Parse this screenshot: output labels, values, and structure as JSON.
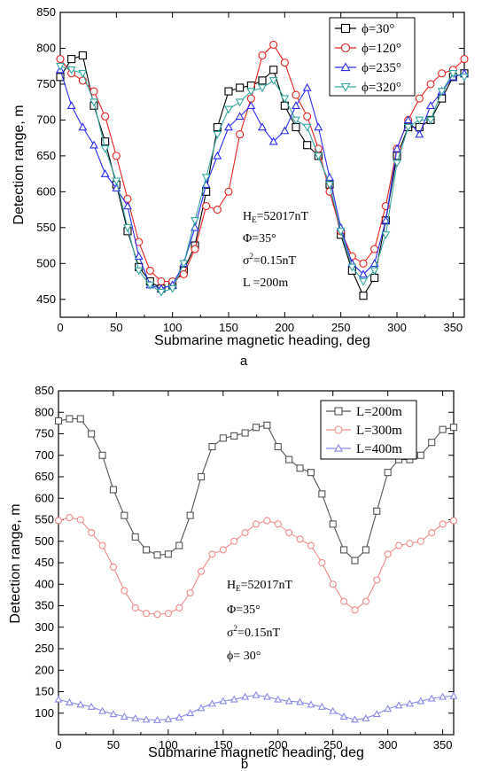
{
  "chart_data": [
    {
      "type": "line",
      "panel_label": "a",
      "xlabel": "Submarine magnetic heading, deg",
      "ylabel": "Detection range, m",
      "xlim": [
        0,
        360
      ],
      "ylim": [
        425,
        850
      ],
      "xticks": [
        0,
        50,
        100,
        150,
        200,
        250,
        300,
        350
      ],
      "yticks": [
        450,
        500,
        550,
        600,
        650,
        700,
        750,
        800,
        850
      ],
      "legend_position": "top-right",
      "annotation": [
        "H",
        "E",
        "=52017nT",
        "Φ=35°",
        "σ",
        "2",
        "=0.15nT",
        "L =200m"
      ],
      "series": [
        {
          "name": "ϕ=30°",
          "color": "#000000",
          "marker": "square",
          "x": [
            0,
            10,
            20,
            30,
            40,
            50,
            60,
            70,
            80,
            90,
            100,
            110,
            120,
            130,
            140,
            150,
            160,
            170,
            180,
            190,
            200,
            210,
            220,
            230,
            240,
            250,
            260,
            270,
            280,
            290,
            300,
            310,
            320,
            330,
            340,
            350,
            360
          ],
          "y": [
            760,
            785,
            790,
            720,
            670,
            610,
            545,
            495,
            475,
            465,
            470,
            490,
            525,
            600,
            690,
            740,
            745,
            748,
            755,
            770,
            720,
            690,
            665,
            650,
            610,
            540,
            490,
            455,
            480,
            560,
            650,
            690,
            690,
            700,
            730,
            760,
            765
          ]
        },
        {
          "name": "ϕ=120°",
          "color": "#e8231f",
          "marker": "circle",
          "x": [
            0,
            10,
            20,
            30,
            40,
            50,
            60,
            70,
            80,
            90,
            100,
            110,
            120,
            130,
            140,
            150,
            160,
            170,
            180,
            190,
            200,
            210,
            220,
            230,
            240,
            250,
            260,
            270,
            280,
            290,
            300,
            310,
            320,
            330,
            340,
            350,
            360
          ],
          "y": [
            785,
            765,
            755,
            740,
            705,
            650,
            590,
            530,
            490,
            475,
            475,
            485,
            520,
            580,
            575,
            600,
            680,
            730,
            790,
            805,
            780,
            735,
            705,
            660,
            600,
            545,
            510,
            500,
            520,
            580,
            660,
            700,
            730,
            750,
            765,
            770,
            785
          ]
        },
        {
          "name": "ϕ=235°",
          "color": "#2a2df2",
          "marker": "triangle-up",
          "x": [
            0,
            10,
            20,
            30,
            40,
            50,
            60,
            70,
            80,
            90,
            100,
            110,
            120,
            130,
            140,
            150,
            160,
            170,
            180,
            190,
            200,
            210,
            220,
            230,
            240,
            250,
            260,
            270,
            280,
            290,
            300,
            310,
            320,
            330,
            340,
            350,
            360
          ],
          "y": [
            770,
            720,
            690,
            665,
            625,
            605,
            580,
            510,
            470,
            465,
            470,
            500,
            550,
            610,
            650,
            690,
            705,
            720,
            690,
            670,
            685,
            720,
            745,
            690,
            620,
            550,
            500,
            485,
            500,
            560,
            660,
            700,
            680,
            720,
            740,
            760,
            765
          ]
        },
        {
          "name": "ϕ=320°",
          "color": "#35a6a0",
          "marker": "triangle-down",
          "x": [
            0,
            10,
            20,
            30,
            40,
            50,
            60,
            70,
            80,
            90,
            100,
            110,
            120,
            130,
            140,
            150,
            160,
            170,
            180,
            190,
            200,
            210,
            220,
            230,
            240,
            250,
            260,
            270,
            280,
            290,
            300,
            310,
            320,
            330,
            340,
            350,
            360
          ],
          "y": [
            775,
            770,
            765,
            725,
            660,
            615,
            550,
            490,
            470,
            460,
            465,
            500,
            560,
            620,
            680,
            715,
            725,
            740,
            745,
            755,
            730,
            700,
            690,
            650,
            610,
            545,
            495,
            475,
            490,
            540,
            640,
            690,
            700,
            700,
            740,
            765,
            760
          ]
        }
      ]
    },
    {
      "type": "line",
      "panel_label": "b",
      "xlabel": "Submarine magnetic heading, deg",
      "ylabel": "Detection range, m",
      "xlim": [
        0,
        360
      ],
      "ylim": [
        50,
        850
      ],
      "xticks": [
        0,
        50,
        100,
        150,
        200,
        250,
        300,
        350
      ],
      "yticks": [
        100,
        150,
        200,
        250,
        300,
        350,
        400,
        450,
        500,
        550,
        600,
        650,
        700,
        750,
        800,
        850
      ],
      "legend_position": "top-right",
      "annotation": [
        "H",
        "E",
        "=52017nT",
        "Φ=35°",
        "σ",
        "2",
        "=0.15nT",
        "ϕ= 30°"
      ],
      "series": [
        {
          "name": "L=200m",
          "color": "#555555",
          "marker": "square",
          "x": [
            0,
            10,
            20,
            30,
            40,
            50,
            60,
            70,
            80,
            90,
            100,
            110,
            120,
            130,
            140,
            150,
            160,
            170,
            180,
            190,
            200,
            210,
            220,
            230,
            240,
            250,
            260,
            270,
            280,
            290,
            300,
            310,
            320,
            330,
            340,
            350,
            360
          ],
          "y": [
            780,
            785,
            785,
            750,
            700,
            620,
            560,
            510,
            480,
            468,
            470,
            490,
            560,
            650,
            720,
            740,
            745,
            752,
            765,
            770,
            720,
            690,
            670,
            660,
            610,
            540,
            480,
            455,
            480,
            570,
            660,
            690,
            690,
            700,
            730,
            760,
            765
          ]
        },
        {
          "name": "L=300m",
          "color": "#f08a8a",
          "marker": "circle",
          "x": [
            0,
            10,
            20,
            30,
            40,
            50,
            60,
            70,
            80,
            90,
            100,
            110,
            120,
            130,
            140,
            150,
            160,
            170,
            180,
            190,
            200,
            210,
            220,
            230,
            240,
            250,
            260,
            270,
            280,
            290,
            300,
            310,
            320,
            330,
            340,
            350,
            360
          ],
          "y": [
            548,
            555,
            550,
            520,
            490,
            440,
            385,
            345,
            332,
            330,
            332,
            345,
            380,
            430,
            470,
            480,
            500,
            520,
            540,
            548,
            540,
            520,
            505,
            490,
            450,
            400,
            360,
            340,
            360,
            410,
            470,
            490,
            495,
            500,
            520,
            540,
            548
          ]
        },
        {
          "name": "L=400m",
          "color": "#8a8ae8",
          "marker": "triangle-up",
          "x": [
            0,
            10,
            20,
            30,
            40,
            50,
            60,
            70,
            80,
            90,
            100,
            110,
            120,
            130,
            140,
            150,
            160,
            170,
            180,
            190,
            200,
            210,
            220,
            230,
            240,
            250,
            260,
            270,
            280,
            290,
            300,
            310,
            320,
            330,
            340,
            350,
            360
          ],
          "y": [
            132,
            125,
            120,
            115,
            105,
            98,
            92,
            88,
            85,
            84,
            86,
            90,
            100,
            112,
            122,
            128,
            132,
            138,
            142,
            138,
            132,
            128,
            126,
            120,
            115,
            105,
            92,
            85,
            88,
            98,
            110,
            118,
            122,
            128,
            134,
            138,
            140
          ]
        }
      ]
    }
  ]
}
